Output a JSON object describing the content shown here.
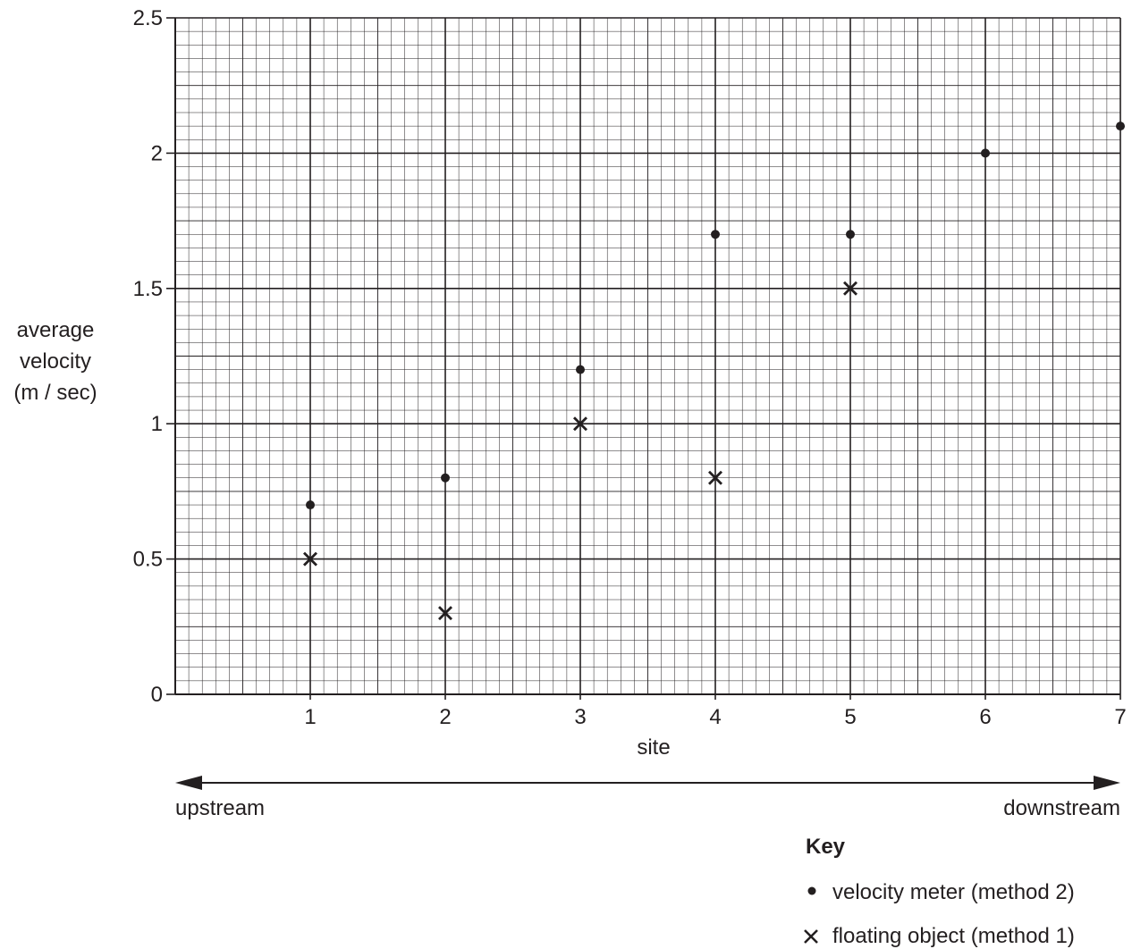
{
  "chart_data": {
    "type": "scatter",
    "xlabel": "site",
    "ylabel_lines": [
      "average",
      "velocity",
      "(m / sec)"
    ],
    "xlim": [
      0,
      7
    ],
    "ylim": [
      0,
      2.5
    ],
    "x_ticks": [
      "1",
      "2",
      "3",
      "4",
      "5",
      "6",
      "7"
    ],
    "y_ticks": [
      "0",
      "0.5",
      "1",
      "1.5",
      "2",
      "2.5"
    ],
    "grid": "fine graph-paper grid, minor every 0.1 site and 0.05 m/sec",
    "series": [
      {
        "name": "velocity meter (method 2)",
        "marker": "dot",
        "points": [
          {
            "x": 1,
            "y": 0.7
          },
          {
            "x": 2,
            "y": 0.8
          },
          {
            "x": 3,
            "y": 1.2
          },
          {
            "x": 4,
            "y": 1.7
          },
          {
            "x": 5,
            "y": 1.7
          },
          {
            "x": 6,
            "y": 2.0
          },
          {
            "x": 7,
            "y": 2.1
          }
        ]
      },
      {
        "name": "floating object (method 1)",
        "marker": "cross",
        "points": [
          {
            "x": 1,
            "y": 0.5
          },
          {
            "x": 2,
            "y": 0.3
          },
          {
            "x": 3,
            "y": 1.0
          },
          {
            "x": 4,
            "y": 0.8
          },
          {
            "x": 5,
            "y": 1.5
          }
        ]
      }
    ],
    "direction_arrow": {
      "left": "upstream",
      "right": "downstream"
    },
    "legend": {
      "title": "Key",
      "position": "bottom-right"
    }
  },
  "colors": {
    "ink": "#231f20",
    "background": "#ffffff"
  }
}
